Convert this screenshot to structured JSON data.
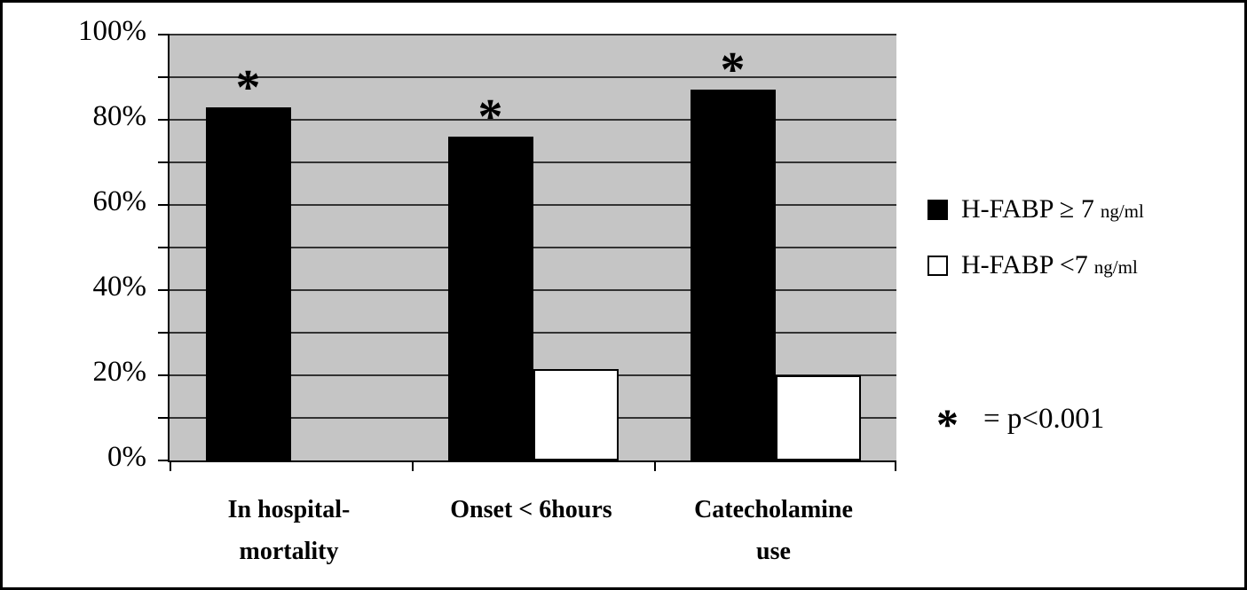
{
  "chart_data": {
    "type": "bar",
    "title": "",
    "xlabel": "",
    "ylabel": "",
    "categories": [
      [
        "In hospital-",
        "mortality"
      ],
      [
        "Onset < 6hours"
      ],
      [
        "Catecholamine",
        "use"
      ]
    ],
    "series": [
      {
        "name": "H-FABP ≥ 7",
        "unit": "ng/ml",
        "fill": "#000000",
        "border": "#000000",
        "values": [
          83,
          76,
          87
        ]
      },
      {
        "name": "H-FABP <7",
        "unit": "ng/ml",
        "fill": "#ffffff",
        "border": "#000000",
        "values": [
          0,
          21.5,
          20
        ]
      }
    ],
    "significant": [
      true,
      true,
      true
    ],
    "significance_symbol": "*",
    "ylim": [
      0,
      100
    ],
    "gridline_step": 10,
    "ytick_values": [
      100,
      80,
      60,
      40,
      20,
      0
    ],
    "ytick_labels": [
      "100%",
      "80%",
      "60%",
      "40%",
      "20%",
      "0%"
    ],
    "grid": true,
    "plot_bg": "#c5c5c5",
    "gridline_color": "#333333",
    "legend_position": "right",
    "annotation": {
      "symbol": "*",
      "text": "= p<0.001"
    }
  }
}
